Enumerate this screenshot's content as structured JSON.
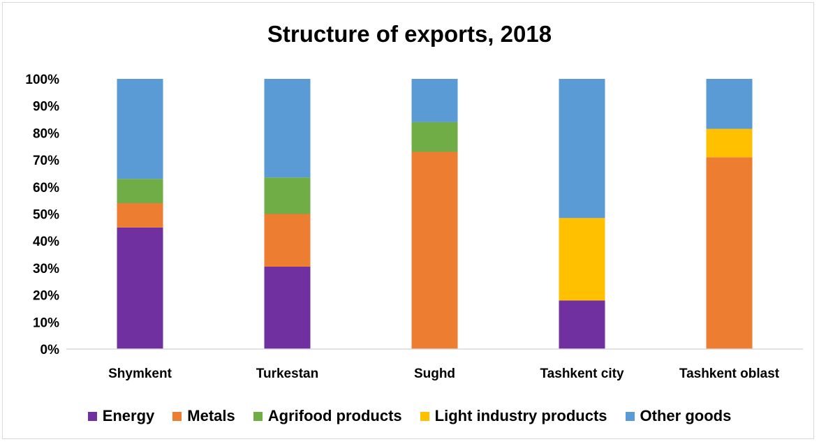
{
  "chart_data": {
    "type": "bar",
    "stacked": true,
    "title": "Structure of exports, 2018",
    "categories": [
      "Shymkent",
      "Turkestan",
      "Sughd",
      "Tashkent city",
      "Tashkent oblast"
    ],
    "ylim": [
      0,
      100
    ],
    "yticks": [
      "0%",
      "10%",
      "20%",
      "30%",
      "40%",
      "50%",
      "60%",
      "70%",
      "80%",
      "90%",
      "100%"
    ],
    "grid": false,
    "legend_position": "bottom",
    "series": [
      {
        "name": "Energy",
        "color": "#7030a0",
        "values": [
          45,
          30.5,
          0,
          18,
          0
        ]
      },
      {
        "name": "Metals",
        "color": "#ed7d31",
        "values": [
          9,
          19.5,
          73,
          0,
          71
        ]
      },
      {
        "name": "Agrifood products",
        "color": "#70ad47",
        "values": [
          9,
          13.5,
          11,
          0,
          0
        ]
      },
      {
        "name": "Light industry products",
        "color": "#ffc000",
        "values": [
          0,
          0,
          0,
          30.5,
          10.5
        ]
      },
      {
        "name": "Other goods",
        "color": "#5b9bd5",
        "values": [
          37,
          36.5,
          16,
          51.5,
          18.5
        ]
      }
    ]
  }
}
